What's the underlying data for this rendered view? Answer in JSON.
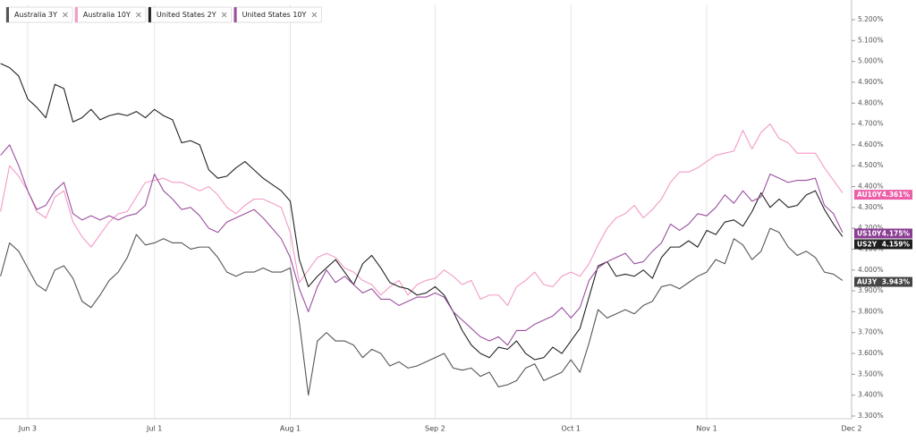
{
  "chart_data": {
    "type": "line",
    "categories": [
      null,
      null,
      null,
      "Jun 3",
      null,
      null,
      null,
      null,
      null,
      null,
      null,
      null,
      null,
      null,
      null,
      null,
      null,
      "Jul 1",
      null,
      null,
      null,
      null,
      null,
      null,
      null,
      null,
      null,
      null,
      null,
      null,
      null,
      null,
      "Aug 1",
      null,
      null,
      null,
      null,
      null,
      null,
      null,
      null,
      null,
      null,
      null,
      null,
      null,
      null,
      null,
      "Sep 2",
      null,
      null,
      null,
      null,
      null,
      null,
      null,
      null,
      null,
      null,
      null,
      null,
      null,
      null,
      "Oct 1",
      null,
      null,
      null,
      null,
      null,
      null,
      null,
      null,
      null,
      null,
      null,
      null,
      null,
      null,
      "Nov 1",
      null,
      null,
      null,
      null,
      null,
      null,
      null,
      null,
      null,
      null,
      null,
      null,
      null,
      null,
      null,
      "Dec 2"
    ],
    "series": [
      {
        "name": "Australia 3Y",
        "tag": "AU3Y",
        "color": "#555555",
        "badge_color": "#444444",
        "last": {
          "value": 3.943,
          "label": "3.943%"
        },
        "values": [
          3.97,
          4.13,
          4.09,
          4.01,
          3.93,
          3.9,
          4.0,
          4.02,
          3.96,
          3.85,
          3.82,
          3.88,
          3.95,
          3.99,
          4.06,
          4.17,
          4.12,
          4.13,
          4.15,
          4.13,
          4.13,
          4.1,
          4.11,
          4.11,
          4.06,
          3.99,
          3.97,
          3.99,
          3.99,
          4.01,
          3.99,
          3.99,
          4.01,
          3.75,
          3.4,
          3.66,
          3.7,
          3.66,
          3.66,
          3.64,
          3.58,
          3.62,
          3.6,
          3.54,
          3.56,
          3.53,
          3.54,
          3.56,
          3.58,
          3.6,
          3.53,
          3.52,
          3.53,
          3.49,
          3.51,
          3.44,
          3.45,
          3.47,
          3.53,
          3.55,
          3.47,
          3.49,
          3.51,
          3.57,
          3.51,
          3.65,
          3.81,
          3.77,
          3.79,
          3.81,
          3.79,
          3.83,
          3.85,
          3.92,
          3.93,
          3.91,
          3.94,
          3.97,
          3.99,
          4.05,
          4.03,
          4.15,
          4.12,
          4.05,
          4.09,
          4.2,
          4.18,
          4.11,
          4.07,
          4.09,
          4.06,
          3.99,
          3.98,
          3.95,
          null
        ]
      },
      {
        "name": "Australia 10Y",
        "tag": "AU10Y",
        "color": "#f29ac8",
        "badge_color": "#ec5fa8",
        "last": {
          "value": 4.361,
          "label": "4.361%"
        },
        "values": [
          4.28,
          4.5,
          4.45,
          4.38,
          4.28,
          4.25,
          4.35,
          4.38,
          4.23,
          4.16,
          4.11,
          4.17,
          4.23,
          4.27,
          4.28,
          4.35,
          4.42,
          4.43,
          4.44,
          4.42,
          4.42,
          4.4,
          4.38,
          4.4,
          4.36,
          4.3,
          4.27,
          4.31,
          4.34,
          4.34,
          4.32,
          4.3,
          4.18,
          3.94,
          4.0,
          4.06,
          4.08,
          4.06,
          4.01,
          3.99,
          3.95,
          3.93,
          3.88,
          3.92,
          3.95,
          3.88,
          3.93,
          3.95,
          3.96,
          4.0,
          3.97,
          3.93,
          3.95,
          3.86,
          3.88,
          3.88,
          3.83,
          3.92,
          3.95,
          3.99,
          3.93,
          3.92,
          3.97,
          3.99,
          3.97,
          4.03,
          4.12,
          4.2,
          4.25,
          4.27,
          4.31,
          4.25,
          4.29,
          4.34,
          4.42,
          4.47,
          4.47,
          4.49,
          4.52,
          4.55,
          4.56,
          4.57,
          4.67,
          4.58,
          4.66,
          4.7,
          4.63,
          4.61,
          4.56,
          4.56,
          4.56,
          4.49,
          4.43,
          4.37,
          null
        ]
      },
      {
        "name": "United States 2Y",
        "tag": "US2Y",
        "color": "#222222",
        "badge_color": "#1f1f1f",
        "last": {
          "value": 4.159,
          "label": "4.159%"
        },
        "values": [
          4.99,
          4.97,
          4.93,
          4.82,
          4.78,
          4.73,
          4.89,
          4.87,
          4.71,
          4.73,
          4.77,
          4.72,
          4.74,
          4.75,
          4.74,
          4.76,
          4.73,
          4.77,
          4.74,
          4.72,
          4.61,
          4.62,
          4.6,
          4.48,
          4.44,
          4.45,
          4.49,
          4.52,
          4.48,
          4.44,
          4.41,
          4.38,
          4.33,
          4.05,
          3.92,
          3.97,
          4.01,
          4.05,
          3.99,
          3.93,
          4.03,
          4.07,
          4.01,
          3.94,
          3.92,
          3.91,
          3.88,
          3.89,
          3.92,
          3.88,
          3.8,
          3.71,
          3.64,
          3.6,
          3.58,
          3.63,
          3.62,
          3.66,
          3.6,
          3.57,
          3.58,
          3.63,
          3.6,
          3.66,
          3.72,
          3.87,
          4.02,
          4.04,
          3.97,
          3.98,
          3.97,
          4.0,
          3.96,
          4.06,
          4.11,
          4.11,
          4.14,
          4.11,
          4.19,
          4.17,
          4.23,
          4.24,
          4.21,
          4.28,
          4.37,
          4.3,
          4.34,
          4.3,
          4.31,
          4.36,
          4.38,
          4.29,
          4.22,
          4.16,
          null
        ]
      },
      {
        "name": "United States 10Y",
        "tag": "US10Y",
        "color": "#9b4f9f",
        "badge_color": "#8a3d93",
        "last": {
          "value": 4.175,
          "label": "4.175%"
        },
        "values": [
          4.55,
          4.6,
          4.5,
          4.38,
          4.29,
          4.31,
          4.38,
          4.42,
          4.27,
          4.24,
          4.26,
          4.24,
          4.26,
          4.24,
          4.26,
          4.27,
          4.31,
          4.46,
          4.38,
          4.34,
          4.29,
          4.3,
          4.26,
          4.2,
          4.18,
          4.23,
          4.25,
          4.27,
          4.29,
          4.25,
          4.2,
          4.15,
          4.06,
          3.91,
          3.8,
          3.92,
          4.0,
          3.94,
          3.97,
          3.93,
          3.89,
          3.91,
          3.86,
          3.86,
          3.83,
          3.85,
          3.87,
          3.87,
          3.89,
          3.87,
          3.8,
          3.76,
          3.72,
          3.68,
          3.66,
          3.68,
          3.64,
          3.71,
          3.71,
          3.74,
          3.76,
          3.78,
          3.82,
          3.77,
          3.82,
          3.95,
          4.01,
          4.04,
          4.06,
          4.08,
          4.03,
          4.04,
          4.09,
          4.13,
          4.22,
          4.19,
          4.22,
          4.27,
          4.26,
          4.3,
          4.36,
          4.32,
          4.38,
          4.33,
          4.35,
          4.46,
          4.44,
          4.42,
          4.43,
          4.43,
          4.44,
          4.31,
          4.27,
          4.18,
          null
        ]
      }
    ],
    "ylim": [
      3.287,
      5.273
    ],
    "yticks": [
      {
        "value": 3.3,
        "label": "3.300%"
      },
      {
        "value": 3.4,
        "label": "3.400%"
      },
      {
        "value": 3.5,
        "label": "3.500%"
      },
      {
        "value": 3.6,
        "label": "3.600%"
      },
      {
        "value": 3.7,
        "label": "3.700%"
      },
      {
        "value": 3.8,
        "label": "3.800%"
      },
      {
        "value": 3.9,
        "label": "3.900%"
      },
      {
        "value": 4.0,
        "label": "4.000%"
      },
      {
        "value": 4.1,
        "label": "4.100%"
      },
      {
        "value": 4.2,
        "label": "4.200%"
      },
      {
        "value": 4.3,
        "label": "4.300%"
      },
      {
        "value": 4.4,
        "label": "4.400%"
      },
      {
        "value": 4.5,
        "label": "4.500%"
      },
      {
        "value": 4.6,
        "label": "4.600%"
      },
      {
        "value": 4.7,
        "label": "4.700%"
      },
      {
        "value": 4.8,
        "label": "4.800%"
      },
      {
        "value": 4.9,
        "label": "4.900%"
      },
      {
        "value": 5.0,
        "label": "5.000%"
      },
      {
        "value": 5.1,
        "label": "5.100%"
      },
      {
        "value": 5.2,
        "label": "5.200%"
      }
    ],
    "axis_side": "right",
    "xgrid": true,
    "legend": "top-left"
  }
}
